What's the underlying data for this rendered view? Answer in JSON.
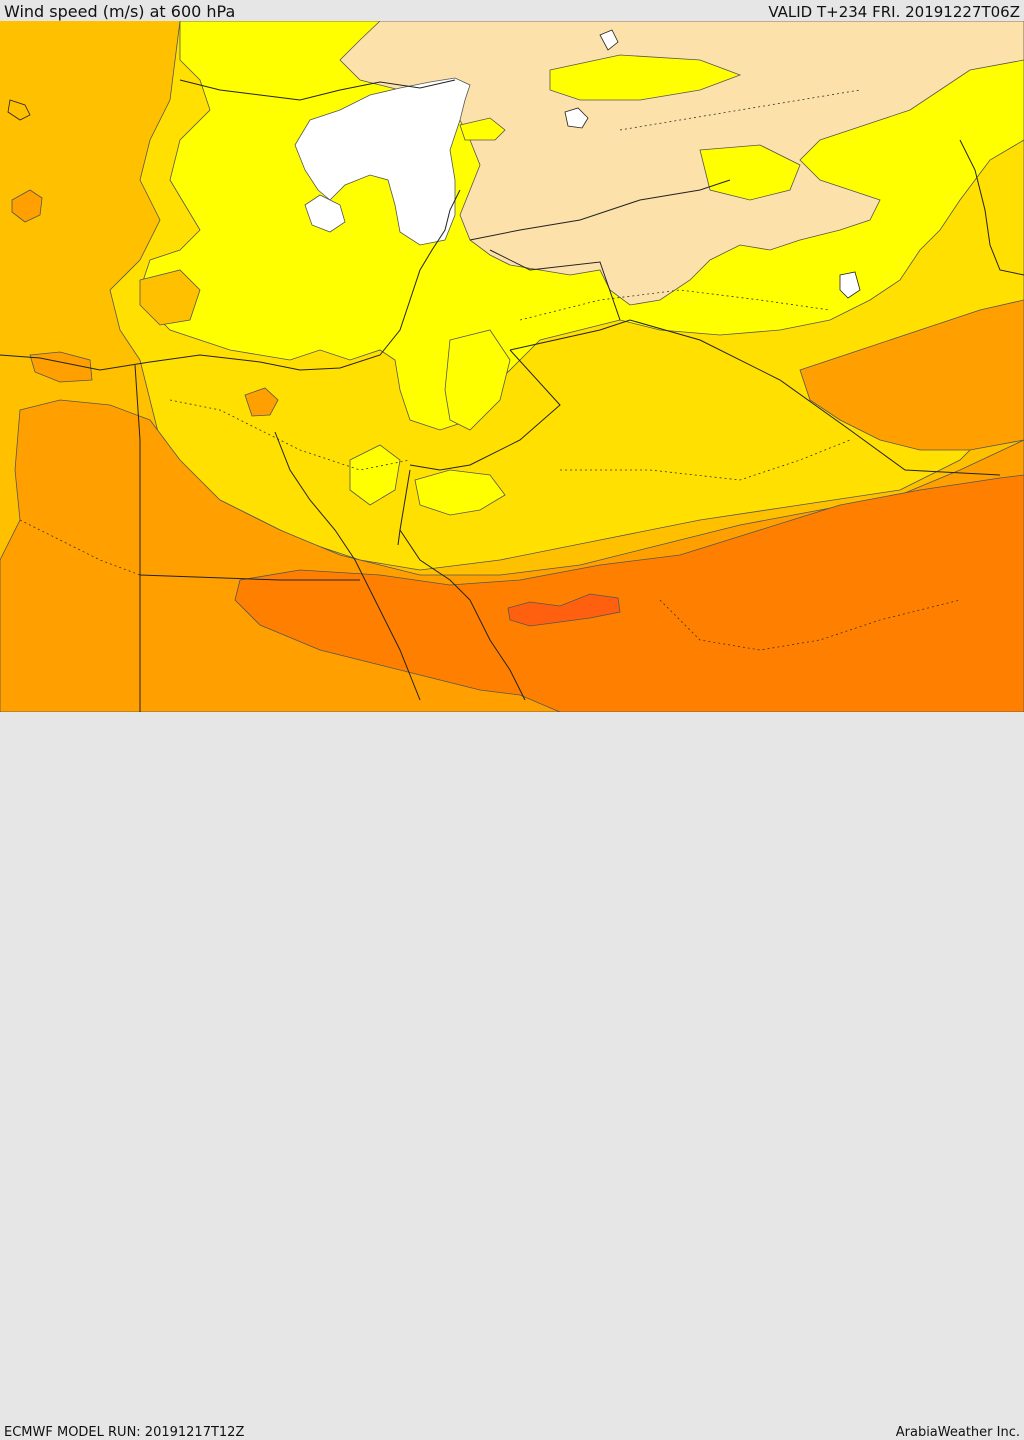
{
  "header": {
    "title": "Wind speed (m/s) at 600 hPa",
    "valid": "VALID T+234 FRI. 20191227T06Z"
  },
  "footer": {
    "model_run": "ECMWF MODEL RUN: 20191217T12Z",
    "brand": "ArabiaWeather Inc."
  },
  "map": {
    "field": "wind speed",
    "level_hpa": 600,
    "units": "m/s",
    "colors": {
      "calm": "#ffffff",
      "light": "#fde1aa",
      "yellow": "#ffff00",
      "gold": "#ffe000",
      "amber": "#ffc000",
      "orange": "#ffa000",
      "dark_orange": "#ff8000",
      "red_orange": "#ff6010"
    }
  }
}
